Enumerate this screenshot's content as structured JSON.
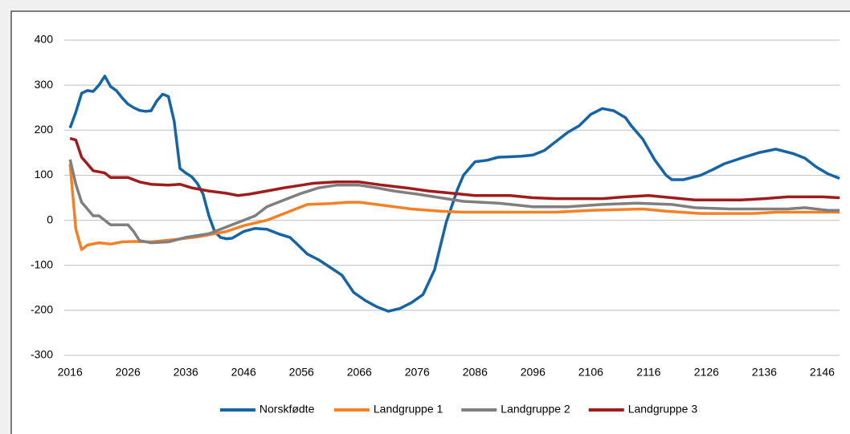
{
  "chart_data": {
    "type": "line",
    "xlim": [
      2015,
      2149
    ],
    "xticks": [
      2016,
      2026,
      2036,
      2046,
      2056,
      2066,
      2076,
      2086,
      2096,
      2106,
      2116,
      2126,
      2136,
      2146
    ],
    "ylim": [
      -300,
      400
    ],
    "yticks": [
      -300,
      -200,
      -100,
      0,
      100,
      200,
      300,
      400
    ],
    "grid": true,
    "legend": "bottom",
    "series": [
      {
        "name": "Norskfødte",
        "color": "#1565a6",
        "x": [
          2016,
          2017,
          2018,
          2019,
          2020,
          2021,
          2022,
          2023,
          2024,
          2025,
          2026,
          2027,
          2028,
          2029,
          2030,
          2031,
          2032,
          2033,
          2034,
          2035,
          2036,
          2037,
          2038,
          2039,
          2040,
          2041,
          2042,
          2043,
          2044,
          2046,
          2048,
          2050,
          2052,
          2054,
          2055,
          2057,
          2059,
          2061,
          2063,
          2065,
          2067,
          2069,
          2071,
          2073,
          2075,
          2077,
          2079,
          2081,
          2083,
          2084,
          2086,
          2088,
          2090,
          2094,
          2096,
          2098,
          2100,
          2102,
          2104,
          2106,
          2108,
          2110,
          2112,
          2113,
          2115,
          2117,
          2119,
          2120,
          2122,
          2125,
          2127,
          2129,
          2132,
          2135,
          2138,
          2141,
          2143,
          2145,
          2147,
          2149
        ],
        "values": [
          205,
          240,
          282,
          288,
          286,
          300,
          320,
          297,
          288,
          272,
          258,
          250,
          244,
          242,
          243,
          265,
          280,
          275,
          220,
          115,
          105,
          97,
          82,
          58,
          10,
          -25,
          -38,
          -41,
          -40,
          -25,
          -18,
          -20,
          -30,
          -38,
          -50,
          -75,
          -88,
          -105,
          -122,
          -160,
          -178,
          -192,
          -202,
          -196,
          -183,
          -165,
          -110,
          -5,
          70,
          100,
          130,
          133,
          140,
          142,
          145,
          155,
          175,
          195,
          210,
          235,
          248,
          243,
          228,
          210,
          180,
          135,
          100,
          90,
          90,
          100,
          112,
          125,
          138,
          150,
          158,
          148,
          138,
          118,
          103,
          93
        ]
      },
      {
        "name": "Landgruppe 1",
        "color": "#f58025",
        "x": [
          2016,
          2017,
          2018,
          2019,
          2021,
          2023,
          2025,
          2027,
          2030,
          2034,
          2038,
          2043,
          2046,
          2050,
          2052,
          2055,
          2057,
          2061,
          2064,
          2066,
          2069,
          2072,
          2075,
          2080,
          2084,
          2100,
          2106,
          2115,
          2119,
          2125,
          2134,
          2138,
          2149
        ],
        "values": [
          125,
          -20,
          -65,
          -55,
          -50,
          -53,
          -48,
          -47,
          -48,
          -43,
          -37,
          -25,
          -12,
          0,
          10,
          25,
          35,
          37,
          40,
          40,
          35,
          30,
          25,
          20,
          18,
          18,
          22,
          25,
          20,
          15,
          15,
          18,
          18
        ]
      },
      {
        "name": "Landgruppe 2",
        "color": "#7f7f7f",
        "x": [
          2016,
          2017,
          2018,
          2019,
          2020,
          2021,
          2022,
          2023,
          2026,
          2027,
          2028,
          2030,
          2033,
          2036,
          2040,
          2043,
          2046,
          2048,
          2050,
          2053,
          2056,
          2059,
          2062,
          2066,
          2069,
          2072,
          2076,
          2080,
          2084,
          2090,
          2096,
          2102,
          2108,
          2114,
          2120,
          2124,
          2130,
          2140,
          2143,
          2147,
          2149
        ],
        "values": [
          135,
          80,
          40,
          25,
          10,
          10,
          0,
          -10,
          -10,
          -25,
          -45,
          -50,
          -48,
          -38,
          -30,
          -15,
          0,
          10,
          30,
          45,
          60,
          72,
          78,
          78,
          72,
          65,
          58,
          50,
          42,
          38,
          30,
          30,
          35,
          38,
          35,
          28,
          25,
          25,
          28,
          22,
          22
        ]
      },
      {
        "name": "Landgruppe 3",
        "color": "#a01c1c",
        "x": [
          2016,
          2017,
          2018,
          2019,
          2020,
          2022,
          2023,
          2026,
          2028,
          2030,
          2033,
          2035,
          2037,
          2040,
          2043,
          2045,
          2047,
          2050,
          2053,
          2056,
          2058,
          2062,
          2066,
          2070,
          2074,
          2078,
          2082,
          2086,
          2092,
          2096,
          2100,
          2108,
          2112,
          2116,
          2120,
          2124,
          2132,
          2136,
          2140,
          2146,
          2149
        ],
        "values": [
          182,
          178,
          140,
          125,
          110,
          105,
          95,
          95,
          85,
          80,
          78,
          80,
          72,
          65,
          60,
          55,
          58,
          65,
          72,
          78,
          82,
          85,
          85,
          78,
          72,
          65,
          60,
          55,
          55,
          50,
          48,
          48,
          52,
          55,
          50,
          45,
          45,
          48,
          52,
          52,
          50
        ]
      }
    ]
  }
}
